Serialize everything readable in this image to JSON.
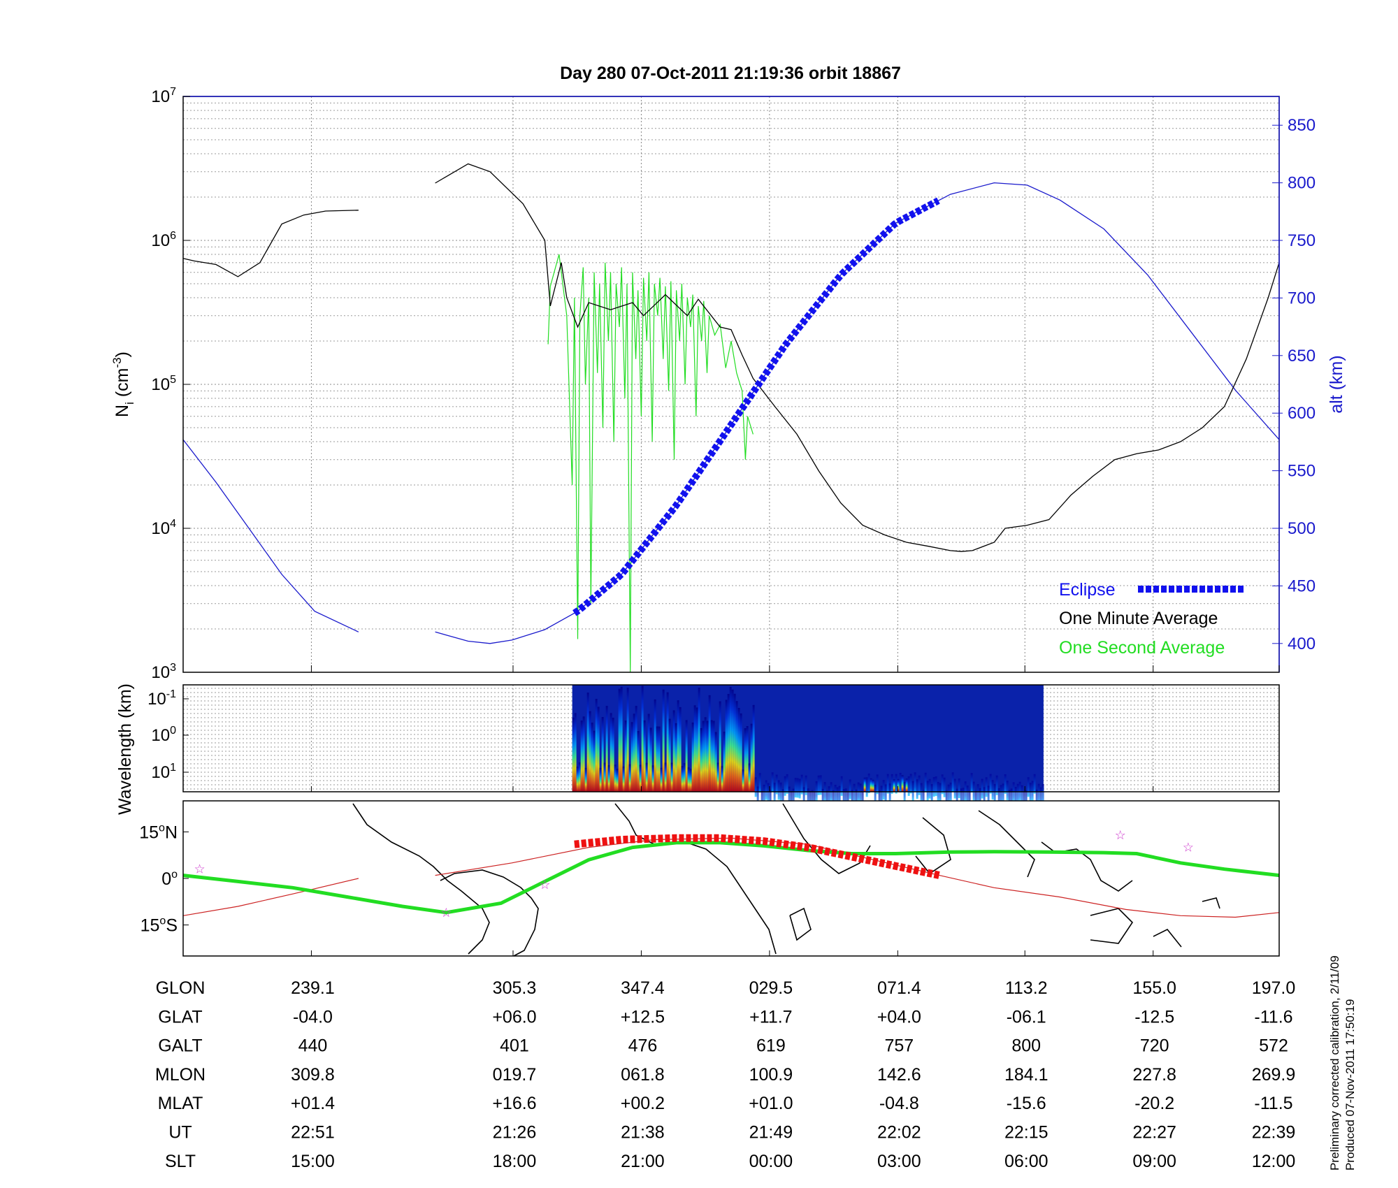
{
  "title": "Day 280  07-Oct-2011 21:19:36   orbit 18867",
  "colors": {
    "ni_green": "#22dd22",
    "one_minute": "#000000",
    "altitude": "#1a1acc",
    "eclipse": "#1111ee",
    "track_green": "#22dd22",
    "track_red_thin": "#cc2222",
    "track_red_thick": "#ee1111",
    "star": "#cc33cc",
    "spectro_low": "#000088",
    "spectro_high": "#cc0000"
  },
  "chart_data": [
    {
      "type": "line",
      "panel": "density",
      "ylabel_base": "N",
      "ylabel_sub": "i",
      "ylabel_unit": " (cm",
      "ylabel_sup": "-3",
      "ylabel_end": ")",
      "yscale": "log",
      "ylim": [
        1000,
        10000000
      ],
      "yticks": [
        {
          "base": "10",
          "exp": "3"
        },
        {
          "base": "10",
          "exp": "4"
        },
        {
          "base": "10",
          "exp": "5"
        },
        {
          "base": "10",
          "exp": "6"
        },
        {
          "base": "10",
          "exp": "7"
        }
      ],
      "ylabel_right": "alt (km)",
      "ylim_right": [
        375,
        875
      ],
      "yticks_right": [
        "400",
        "450",
        "500",
        "550",
        "600",
        "650",
        "700",
        "750",
        "800",
        "850"
      ],
      "xlim": [
        0,
        1
      ],
      "grid": true,
      "legend": {
        "position": "bottom-right",
        "items": [
          "Eclipse",
          "One Minute Average",
          "One Second Average"
        ]
      },
      "series": [
        {
          "name": "One Minute Average",
          "style": "line",
          "segments": [
            [
              [
                0,
                750000
              ],
              [
                0.01,
                720000
              ],
              [
                0.03,
                680000
              ],
              [
                0.05,
                560000
              ],
              [
                0.07,
                700000
              ],
              [
                0.09,
                1300000
              ],
              [
                0.11,
                1500000
              ],
              [
                0.13,
                1600000
              ],
              [
                0.16,
                1620000
              ]
            ],
            [
              [
                0.23,
                2500000
              ],
              [
                0.26,
                3400000
              ],
              [
                0.28,
                3000000
              ],
              [
                0.31,
                1800000
              ],
              [
                0.33,
                1000000
              ],
              [
                0.335,
                350000
              ],
              [
                0.345,
                700000
              ],
              [
                0.35,
                400000
              ],
              [
                0.36,
                250000
              ],
              [
                0.37,
                370000
              ],
              [
                0.39,
                330000
              ],
              [
                0.41,
                370000
              ],
              [
                0.42,
                300000
              ],
              [
                0.44,
                420000
              ],
              [
                0.46,
                300000
              ],
              [
                0.47,
                390000
              ],
              [
                0.49,
                250000
              ],
              [
                0.5,
                240000
              ],
              [
                0.51,
                160000
              ],
              [
                0.52,
                110000
              ],
              [
                0.54,
                70000
              ],
              [
                0.56,
                45000
              ],
              [
                0.58,
                25000
              ],
              [
                0.6,
                15000
              ],
              [
                0.62,
                10500
              ],
              [
                0.64,
                9000
              ],
              [
                0.66,
                8000
              ],
              [
                0.68,
                7500
              ],
              [
                0.7,
                7000
              ],
              [
                0.71,
                6900
              ],
              [
                0.72,
                7000
              ],
              [
                0.74,
                8000
              ],
              [
                0.75,
                10000
              ],
              [
                0.77,
                10500
              ],
              [
                0.79,
                11500
              ],
              [
                0.81,
                17000
              ],
              [
                0.83,
                23000
              ],
              [
                0.85,
                30000
              ],
              [
                0.87,
                33000
              ],
              [
                0.89,
                35000
              ],
              [
                0.91,
                40000
              ],
              [
                0.93,
                50000
              ],
              [
                0.95,
                70000
              ],
              [
                0.97,
                150000
              ],
              [
                0.99,
                400000
              ],
              [
                1.0,
                700000
              ]
            ]
          ]
        },
        {
          "name": "One Second Average",
          "style": "line",
          "segments": [
            [
              [
                0.333,
                190000
              ],
              [
                0.335,
                480000
              ],
              [
                0.343,
                800000
              ],
              [
                0.35,
                300000
              ],
              [
                0.355,
                20000
              ],
              [
                0.357,
                400000
              ],
              [
                0.36,
                1700
              ],
              [
                0.362,
                300000
              ],
              [
                0.365,
                650000
              ],
              [
                0.367,
                100000
              ],
              [
                0.37,
                400000
              ],
              [
                0.372,
                3000
              ],
              [
                0.375,
                600000
              ],
              [
                0.378,
                120000
              ],
              [
                0.38,
                500000
              ],
              [
                0.383,
                50000
              ],
              [
                0.385,
                700000
              ],
              [
                0.388,
                200000
              ],
              [
                0.39,
                600000
              ],
              [
                0.393,
                40000
              ],
              [
                0.395,
                500000
              ],
              [
                0.398,
                250000
              ],
              [
                0.4,
                650000
              ],
              [
                0.403,
                80000
              ],
              [
                0.405,
                500000
              ],
              [
                0.408,
                1000
              ],
              [
                0.41,
                600000
              ],
              [
                0.413,
                150000
              ],
              [
                0.415,
                450000
              ],
              [
                0.418,
                60000
              ],
              [
                0.42,
                550000
              ],
              [
                0.423,
                200000
              ],
              [
                0.425,
                600000
              ],
              [
                0.428,
                40000
              ],
              [
                0.43,
                500000
              ],
              [
                0.433,
                300000
              ],
              [
                0.435,
                550000
              ],
              [
                0.438,
                150000
              ],
              [
                0.44,
                480000
              ],
              [
                0.443,
                90000
              ],
              [
                0.445,
                520000
              ],
              [
                0.448,
                30000
              ],
              [
                0.45,
                450000
              ],
              [
                0.453,
                200000
              ],
              [
                0.455,
                500000
              ],
              [
                0.458,
                100000
              ],
              [
                0.46,
                400000
              ],
              [
                0.463,
                250000
              ],
              [
                0.465,
                420000
              ],
              [
                0.468,
                60000
              ],
              [
                0.47,
                350000
              ],
              [
                0.473,
                200000
              ],
              [
                0.475,
                380000
              ],
              [
                0.478,
                120000
              ],
              [
                0.48,
                300000
              ],
              [
                0.485,
                220000
              ],
              [
                0.49,
                260000
              ],
              [
                0.495,
                130000
              ],
              [
                0.5,
                200000
              ],
              [
                0.505,
                120000
              ],
              [
                0.51,
                90000
              ],
              [
                0.513,
                30000
              ],
              [
                0.515,
                60000
              ],
              [
                0.52,
                45000
              ]
            ]
          ]
        }
      ],
      "altitude": {
        "name": "alt (km)",
        "segments": [
          [
            [
              0,
              577
            ],
            [
              0.03,
              540
            ],
            [
              0.06,
              500
            ],
            [
              0.09,
              460
            ],
            [
              0.12,
              428
            ],
            [
              0.16,
              410
            ]
          ],
          [
            [
              0.23,
              410
            ],
            [
              0.26,
              402
            ],
            [
              0.28,
              400
            ],
            [
              0.3,
              403
            ],
            [
              0.33,
              412
            ],
            [
              0.36,
              428
            ],
            [
              0.4,
              460
            ],
            [
              0.45,
              520
            ],
            [
              0.5,
              590
            ],
            [
              0.55,
              660
            ],
            [
              0.6,
              720
            ],
            [
              0.65,
              765
            ],
            [
              0.7,
              790
            ],
            [
              0.74,
              800
            ],
            [
              0.77,
              798
            ],
            [
              0.8,
              785
            ],
            [
              0.84,
              760
            ],
            [
              0.88,
              720
            ],
            [
              0.92,
              670
            ],
            [
              0.96,
              620
            ],
            [
              1.0,
              577
            ]
          ]
        ]
      },
      "eclipse": {
        "name": "Eclipse",
        "x_start": 0.357,
        "x_end": 0.69
      }
    },
    {
      "type": "heatmap",
      "panel": "spectrogram",
      "ylabel": "Wavelength (km)",
      "yticks": [
        {
          "base": "10",
          "exp": "-1"
        },
        {
          "base": "10",
          "exp": "0"
        },
        {
          "base": "10",
          "exp": "1"
        }
      ],
      "x_start": 0.355,
      "x_end": 0.785,
      "colormap": "jet"
    },
    {
      "type": "line",
      "panel": "map",
      "yticks": [
        {
          "v": "15",
          "deg": "o",
          "h": "N"
        },
        {
          "v": "0",
          "deg": "o",
          "h": ""
        },
        {
          "v": "15",
          "deg": "o",
          "h": "S"
        }
      ],
      "ylim": [
        -25,
        25
      ],
      "series": [
        {
          "name": "ground track",
          "points": [
            [
              0,
              1
            ],
            [
              0.05,
              -1
            ],
            [
              0.1,
              -3
            ],
            [
              0.15,
              -6
            ],
            [
              0.2,
              -9
            ],
            [
              0.24,
              -11
            ],
            [
              0.29,
              -8
            ],
            [
              0.33,
              -1
            ],
            [
              0.37,
              6
            ],
            [
              0.41,
              10
            ],
            [
              0.45,
              11.5
            ],
            [
              0.49,
              11.5
            ],
            [
              0.53,
              10.5
            ],
            [
              0.57,
              9
            ],
            [
              0.61,
              8
            ],
            [
              0.65,
              8
            ],
            [
              0.7,
              8.5
            ],
            [
              0.74,
              8.6
            ],
            [
              0.79,
              8.5
            ],
            [
              0.84,
              8.3
            ],
            [
              0.87,
              8
            ],
            [
              0.91,
              5
            ],
            [
              0.95,
              3
            ],
            [
              1.0,
              1
            ]
          ]
        },
        {
          "name": "track thin red",
          "points": [
            [
              0,
              -12
            ],
            [
              0.05,
              -9
            ],
            [
              0.1,
              -5
            ],
            [
              0.16,
              0
            ]
          ]
        },
        {
          "name": "track thin red 2",
          "points": [
            [
              0.23,
              1
            ],
            [
              0.3,
              5
            ],
            [
              0.37,
              10
            ],
            [
              0.43,
              12.5
            ],
            [
              0.5,
              13
            ],
            [
              0.57,
              11
            ],
            [
              0.63,
              6
            ],
            [
              0.69,
              1
            ],
            [
              0.74,
              -3
            ],
            [
              0.8,
              -6
            ],
            [
              0.86,
              -10
            ],
            [
              0.91,
              -12
            ],
            [
              0.96,
              -12.5
            ],
            [
              1.0,
              -11
            ]
          ]
        },
        {
          "name": "eclipse track",
          "points": [
            [
              0.357,
              11
            ],
            [
              0.4,
              12.5
            ],
            [
              0.45,
              13
            ],
            [
              0.49,
              13
            ],
            [
              0.53,
              12
            ],
            [
              0.57,
              10
            ],
            [
              0.61,
              7
            ],
            [
              0.65,
              4
            ],
            [
              0.69,
              1
            ]
          ]
        }
      ],
      "stars": [
        [
          0.015,
          3
        ],
        [
          0.24,
          -11
        ],
        [
          0.33,
          -2
        ],
        [
          0.855,
          14
        ],
        [
          0.917,
          10
        ]
      ]
    }
  ],
  "table": {
    "rows": [
      {
        "label": "GLON",
        "values": [
          "239.1",
          "305.3",
          "347.4",
          "029.5",
          "071.4",
          "113.2",
          "155.0",
          "197.0"
        ]
      },
      {
        "label": "GLAT",
        "values": [
          "-04.0",
          "+06.0",
          "+12.5",
          "+11.7",
          "+04.0",
          "-06.1",
          "-12.5",
          "-11.6"
        ]
      },
      {
        "label": "GALT",
        "values": [
          "440",
          "401",
          "476",
          "619",
          "757",
          "800",
          "720",
          "572"
        ]
      },
      {
        "label": "MLON",
        "values": [
          "309.8",
          "019.7",
          "061.8",
          "100.9",
          "142.6",
          "184.1",
          "227.8",
          "269.9"
        ]
      },
      {
        "label": "MLAT",
        "values": [
          "+01.4",
          "+16.6",
          "+00.2",
          "+01.0",
          "-04.8",
          "-15.6",
          "-20.2",
          "-11.5"
        ]
      },
      {
        "label": "UT",
        "values": [
          "22:51",
          "21:26",
          "21:38",
          "21:49",
          "22:02",
          "22:15",
          "22:27",
          "22:39"
        ]
      },
      {
        "label": "SLT",
        "values": [
          "15:00",
          "18:00",
          "21:00",
          "00:00",
          "03:00",
          "06:00",
          "09:00",
          "12:00"
        ]
      }
    ],
    "tick_fractions": [
      0.117,
      0.301,
      0.418,
      0.535,
      0.652,
      0.768,
      0.885,
      1.0
    ]
  },
  "footer": {
    "line1": "Preliminary corrected calibration, 2/11/09",
    "line2": "Produced 07-Nov-2011 17:50:19"
  }
}
